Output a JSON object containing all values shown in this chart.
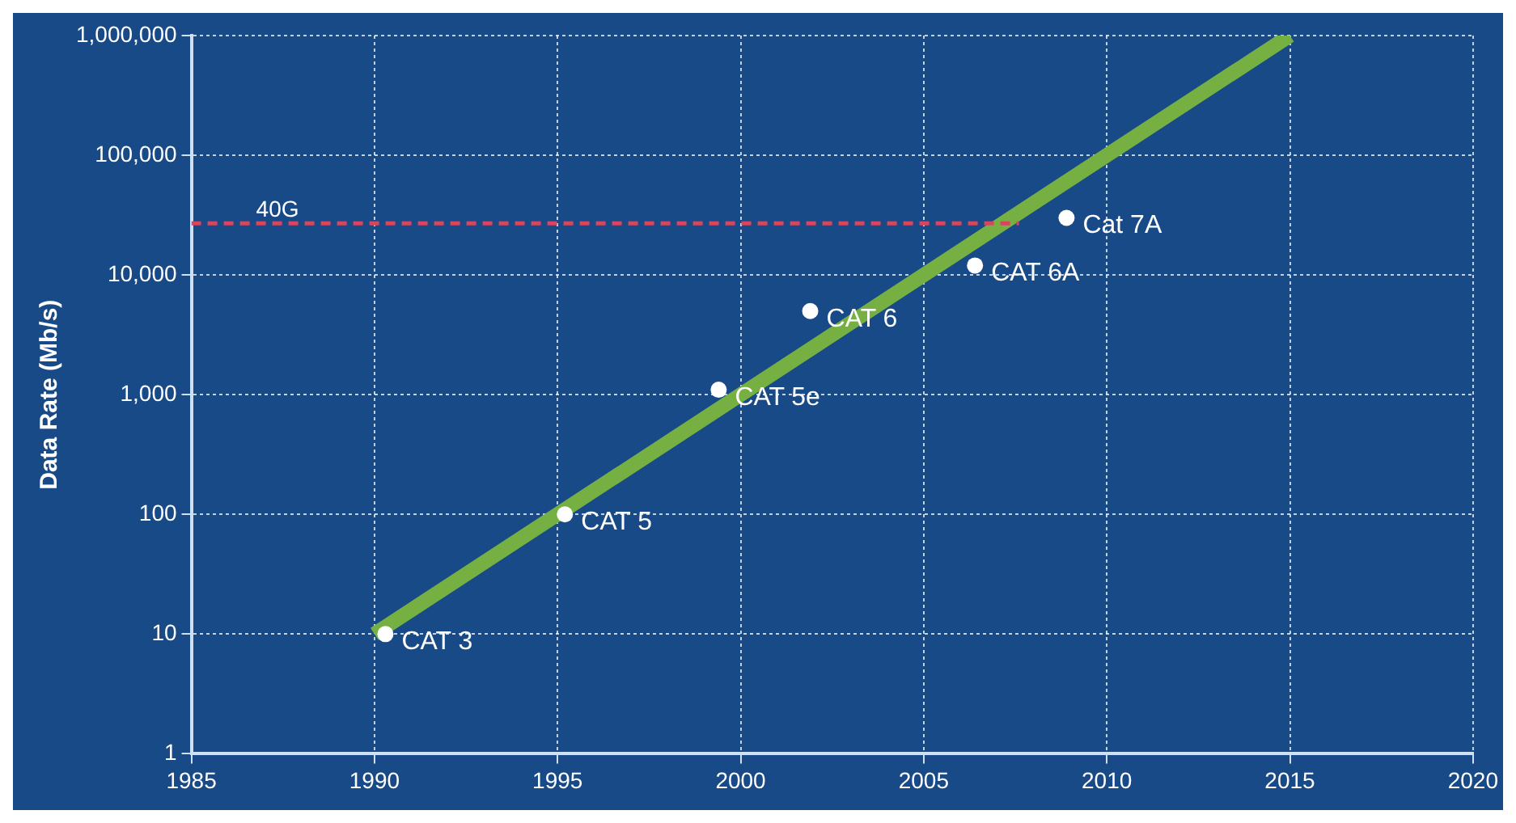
{
  "chart_data": {
    "type": "scatter",
    "ylabel": "Data Rate (Mb/s)",
    "log": "y",
    "grid": true,
    "legend": false,
    "xlim": [
      1985,
      2020
    ],
    "xticks": [
      1985,
      1990,
      1995,
      2000,
      2005,
      2010,
      2015,
      2020
    ],
    "ylim": [
      1,
      1000000
    ],
    "yticks": [
      1,
      10,
      100,
      {
        "value": 1000,
        "label": "1,000"
      },
      {
        "value": 10000,
        "label": "10,000"
      },
      {
        "value": 100000,
        "label": "100,000"
      },
      {
        "value": 1000000,
        "label": "1,000,000"
      }
    ],
    "series": [
      {
        "name": "40G",
        "type": "line",
        "line_style": "dashed",
        "marker": "none",
        "color": "#d9455f",
        "x": [
          1985,
          2007.6
        ],
        "values": [
          27000,
          27000
        ]
      },
      {
        "type": "line",
        "line_style": "solid",
        "marker": "none",
        "color": "#76b043",
        "x": [
          1990,
          2015
        ],
        "values": [
          10,
          1000000
        ]
      },
      {
        "marker": "circle",
        "color": "#ffffff",
        "x": [
          1990.3,
          1995.2,
          1999.4,
          2001.9,
          2006.4,
          2008.9
        ],
        "values": [
          10,
          100,
          1100,
          5000,
          12000,
          30000
        ]
      }
    ],
    "annotations": [
      {
        "text": "CAT 3",
        "x": 1990.3,
        "y": 10
      },
      {
        "text": "CAT 5",
        "x": 1995.2,
        "y": 100
      },
      {
        "text": "CAT 5e",
        "x": 1999.4,
        "y": 1100
      },
      {
        "text": "CAT 6",
        "x": 2001.9,
        "y": 5000
      },
      {
        "text": "CAT 6A",
        "x": 2006.4,
        "y": 12000
      },
      {
        "text": "Cat 7A",
        "x": 2008.9,
        "y": 30000
      }
    ]
  }
}
